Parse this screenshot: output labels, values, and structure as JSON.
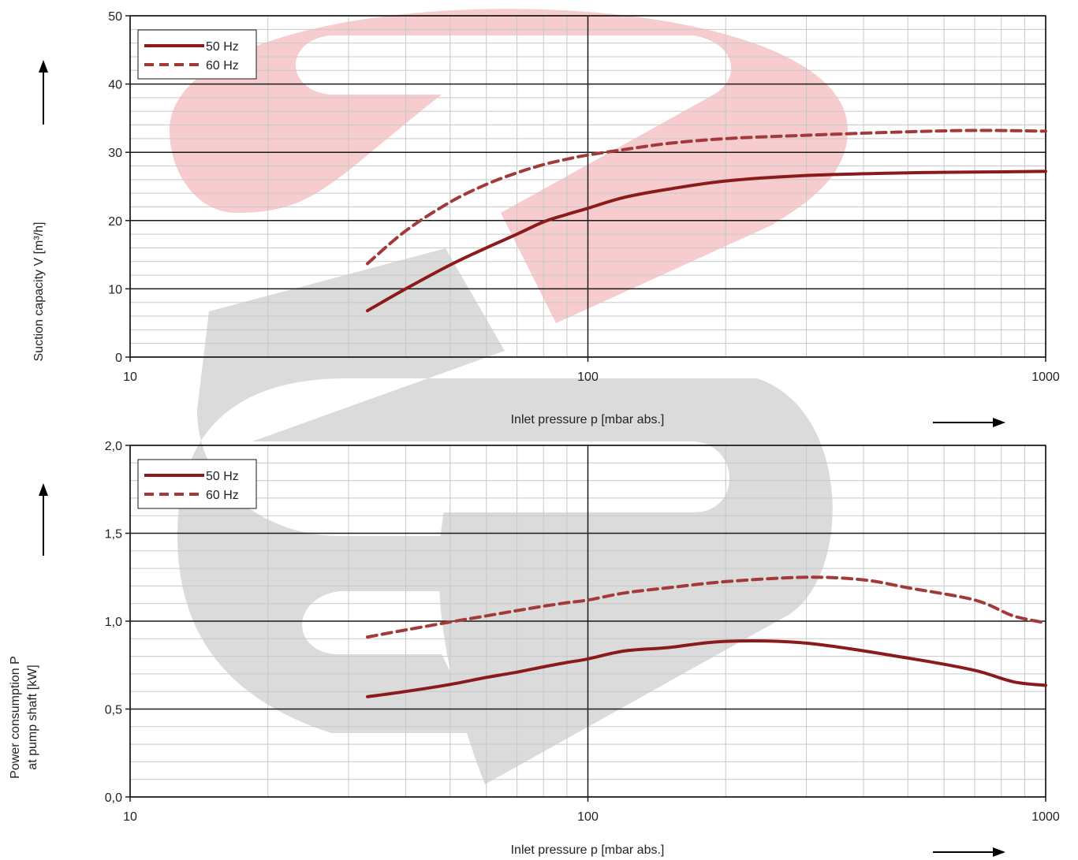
{
  "colors": {
    "series_50": "#8b1a1a",
    "series_60": "#a33a3a",
    "watermark_red": "#f6c6c9",
    "watermark_gray": "#d7d7d7",
    "grid_major": "#1a1a1a",
    "grid_minor": "#c8c8c8"
  },
  "chart_data": [
    {
      "type": "line",
      "xlabel": "Inlet pressure p [mbar abs.]",
      "ylabel": "Suction capacity V [m³/h]",
      "x_scale": "log",
      "xlim": [
        10,
        1000
      ],
      "ylim": [
        0,
        50
      ],
      "x_ticks": [
        "10",
        "100",
        "1000"
      ],
      "y_ticks": [
        "0",
        "10",
        "20",
        "30",
        "40",
        "50"
      ],
      "grid": true,
      "legend_position": "top-left",
      "series": [
        {
          "name": "50 Hz",
          "style": "solid",
          "x": [
            33,
            40,
            50,
            60,
            70,
            80,
            90,
            100,
            120,
            150,
            200,
            300,
            500,
            700,
            1000
          ],
          "y": [
            6.8,
            10,
            13.5,
            16,
            18,
            19.8,
            20.9,
            21.8,
            23.4,
            24.6,
            25.8,
            26.6,
            27.0,
            27.1,
            27.2
          ]
        },
        {
          "name": "60 Hz",
          "style": "dashed",
          "x": [
            33,
            40,
            50,
            60,
            70,
            80,
            90,
            100,
            120,
            150,
            200,
            300,
            500,
            700,
            1000
          ],
          "y": [
            13.7,
            18.5,
            22.7,
            25.3,
            27.0,
            28.2,
            29.0,
            29.6,
            30.4,
            31.3,
            32.0,
            32.5,
            33.0,
            33.2,
            33.1
          ]
        }
      ]
    },
    {
      "type": "line",
      "xlabel": "Inlet pressure p [mbar abs.]",
      "ylabel": "Power consumption P at pump shaft [kW]",
      "ylabel_lines": [
        "Power consumption P",
        "at pump shaft [kW]"
      ],
      "x_scale": "log",
      "xlim": [
        10,
        1000
      ],
      "ylim": [
        0,
        2.0
      ],
      "x_ticks": [
        "10",
        "100",
        "1000"
      ],
      "y_ticks": [
        "0,0",
        "0,5",
        "1,0",
        "1,5",
        "2,0"
      ],
      "grid": true,
      "legend_position": "top-left",
      "series": [
        {
          "name": "50 Hz",
          "style": "solid",
          "x": [
            33,
            40,
            50,
            60,
            70,
            80,
            90,
            100,
            120,
            150,
            200,
            300,
            500,
            700,
            850,
            1000
          ],
          "y": [
            0.57,
            0.6,
            0.64,
            0.68,
            0.71,
            0.74,
            0.765,
            0.785,
            0.83,
            0.85,
            0.885,
            0.875,
            0.79,
            0.72,
            0.655,
            0.635
          ]
        },
        {
          "name": "60 Hz",
          "style": "dashed",
          "x": [
            33,
            40,
            50,
            60,
            70,
            80,
            90,
            100,
            120,
            150,
            200,
            300,
            400,
            500,
            700,
            850,
            1000
          ],
          "y": [
            0.91,
            0.95,
            0.995,
            1.03,
            1.06,
            1.085,
            1.105,
            1.12,
            1.16,
            1.19,
            1.225,
            1.25,
            1.235,
            1.19,
            1.12,
            1.03,
            0.99
          ]
        }
      ]
    }
  ]
}
